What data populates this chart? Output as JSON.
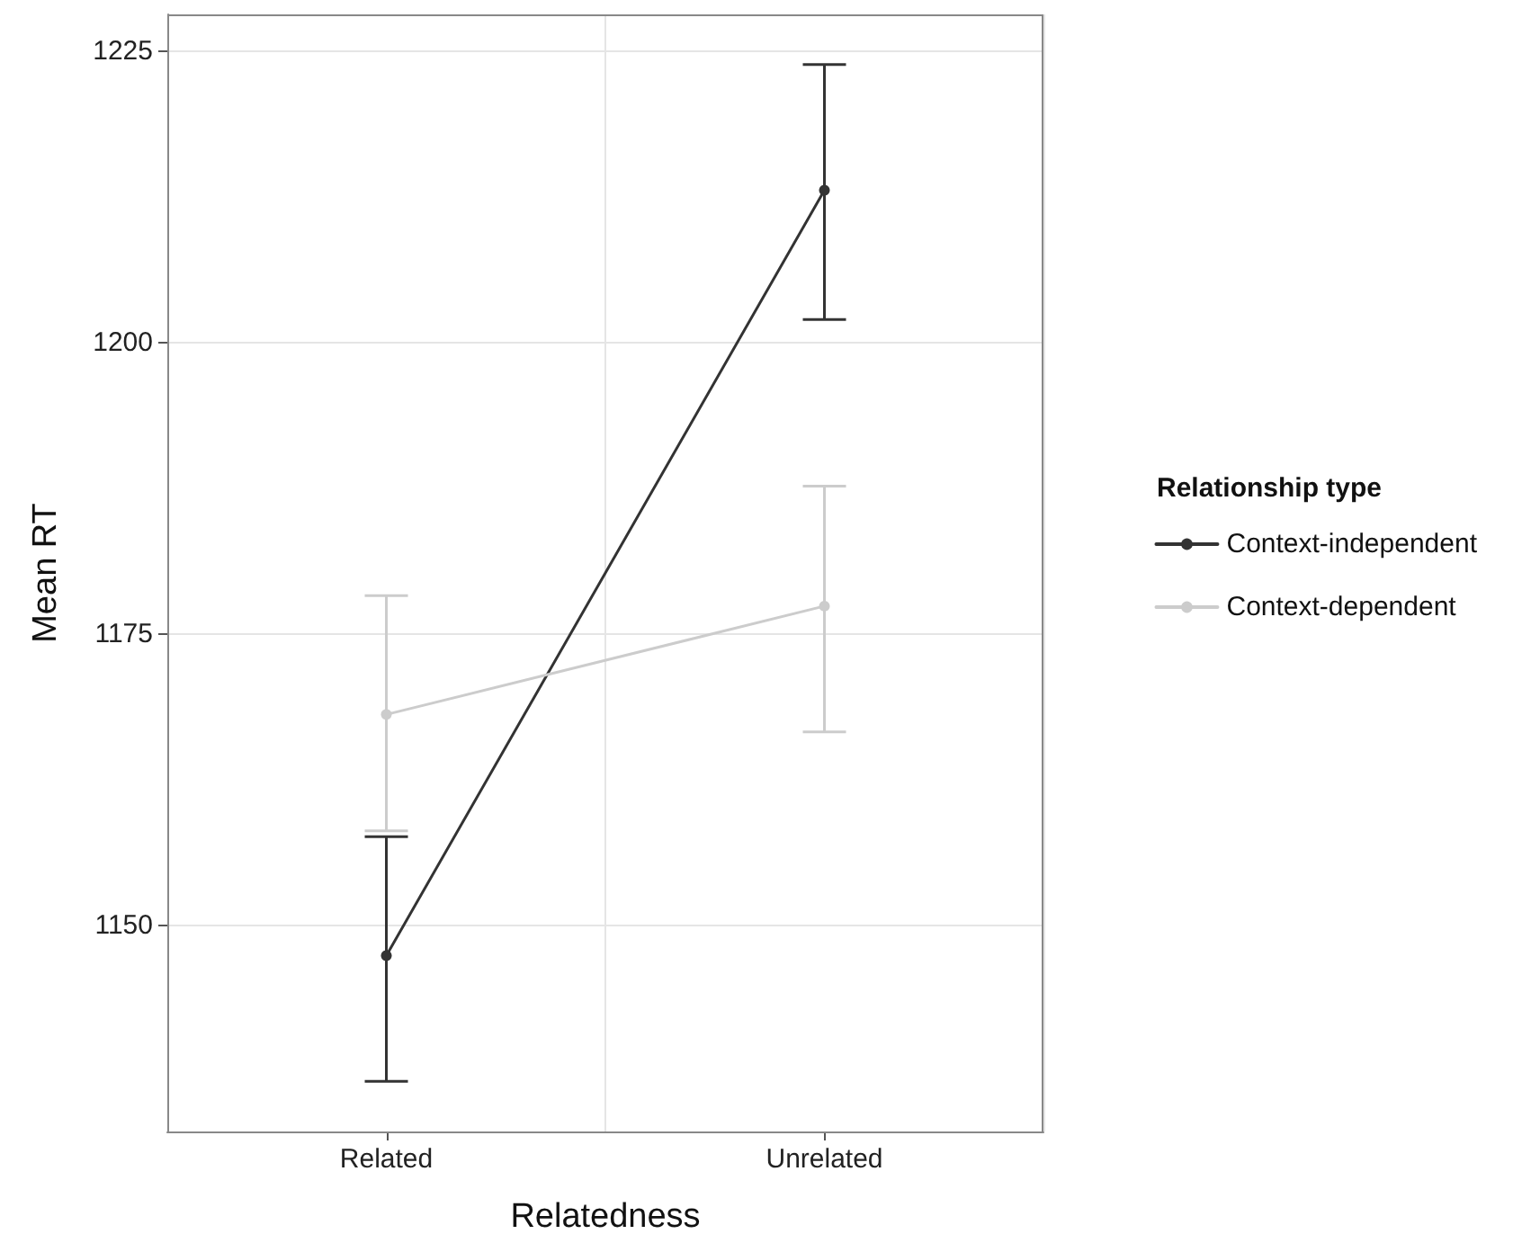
{
  "chart_data": {
    "type": "line",
    "xlabel": "Relatedness",
    "ylabel": "Mean RT",
    "legend_title": "Relationship type",
    "categories": [
      "Related",
      "Unrelated"
    ],
    "series": [
      {
        "name": "Context-independent",
        "color": "#333333",
        "values": [
          1147.4,
          1213.1
        ],
        "errors": [
          [
            1136.6,
            1157.6
          ],
          [
            1202.0,
            1223.9
          ]
        ]
      },
      {
        "name": "Context-dependent",
        "color": "#cccccc",
        "values": [
          1168.1,
          1177.4
        ],
        "errors": [
          [
            1158.1,
            1178.3
          ],
          [
            1166.6,
            1187.7
          ]
        ]
      }
    ],
    "ylim": [
      1132.3,
      1228.2
    ],
    "yticks": [
      1150,
      1175,
      1200,
      1225
    ],
    "grid": true,
    "legend": "right",
    "marker": "circle",
    "line_style": "solid"
  }
}
